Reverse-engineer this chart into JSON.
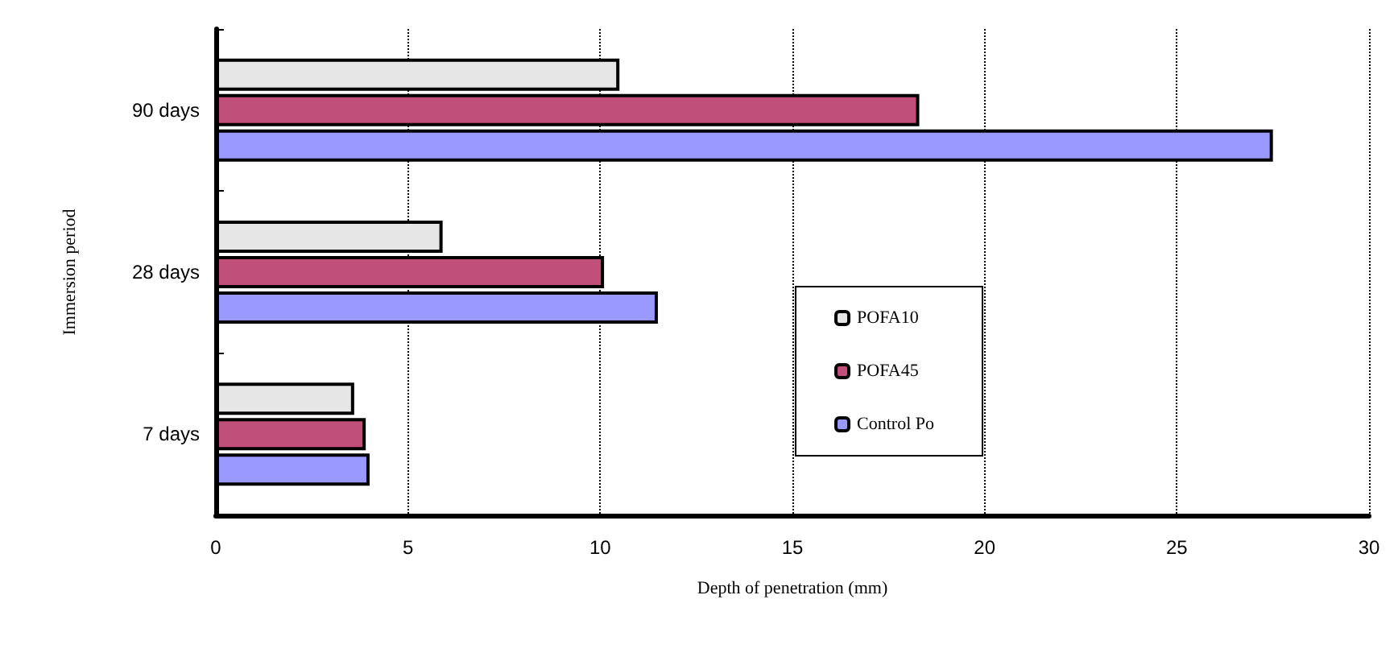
{
  "chart_data": {
    "type": "bar",
    "orientation": "horizontal",
    "xlabel": "Depth of penetration (mm)",
    "ylabel": "Immersion period",
    "categories": [
      "90 days",
      "28 days",
      "7 days"
    ],
    "series": [
      {
        "name": "POFA10",
        "color": "#e6e6e6",
        "values": [
          10.5,
          5.9,
          3.6
        ]
      },
      {
        "name": "POFA45",
        "color": "#c0507a",
        "values": [
          18.3,
          10.1,
          3.9
        ]
      },
      {
        "name": "Control Po",
        "color": "#9999ff",
        "values": [
          27.5,
          11.5,
          4.0
        ]
      }
    ],
    "xlim": [
      0,
      30
    ],
    "xticks": [
      0,
      5,
      10,
      15,
      20,
      25,
      30
    ],
    "grid": "x",
    "legend": "right"
  }
}
